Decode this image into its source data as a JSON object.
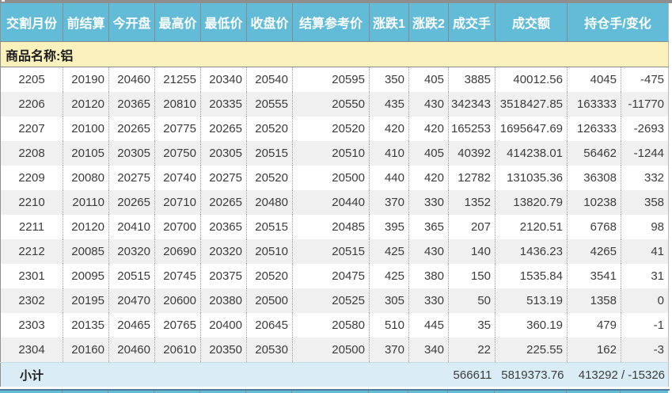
{
  "colors": {
    "header_bg": "#62bbd7",
    "header_text": "#ffffff",
    "product_row_bg": "#faf1bd",
    "subtotal_bg": "#daecf6",
    "row_alt_bg": "#f0f0f0",
    "grid_line": "#8a8a8a"
  },
  "table": {
    "columns": [
      "交割月份",
      "前结算",
      "今开盘",
      "最高价",
      "最低价",
      "收盘价",
      "结算参考价",
      "涨跌1",
      "涨跌2",
      "成交手",
      "成交额",
      "持仓手/变化"
    ],
    "product_label": "商品名称:铝",
    "rows": [
      [
        "2205",
        "20190",
        "20460",
        "21255",
        "20340",
        "20540",
        "20595",
        "350",
        "405",
        "3885",
        "40012.56",
        "4045",
        "-475"
      ],
      [
        "2206",
        "20120",
        "20365",
        "20810",
        "20335",
        "20555",
        "20550",
        "435",
        "430",
        "342343",
        "3518427.85",
        "163333",
        "-11770"
      ],
      [
        "2207",
        "20100",
        "20265",
        "20775",
        "20265",
        "20520",
        "20520",
        "420",
        "420",
        "165253",
        "1695647.69",
        "126333",
        "-2693"
      ],
      [
        "2208",
        "20105",
        "20305",
        "20750",
        "20305",
        "20515",
        "20510",
        "410",
        "405",
        "40392",
        "414238.01",
        "56462",
        "-1244"
      ],
      [
        "2209",
        "20080",
        "20275",
        "20740",
        "20275",
        "20520",
        "20500",
        "440",
        "420",
        "12782",
        "131035.36",
        "36308",
        "332"
      ],
      [
        "2210",
        "20110",
        "20265",
        "20710",
        "20265",
        "20480",
        "20440",
        "370",
        "330",
        "1352",
        "13820.79",
        "10238",
        "358"
      ],
      [
        "2211",
        "20120",
        "20410",
        "20700",
        "20365",
        "20515",
        "20485",
        "395",
        "365",
        "207",
        "2120.51",
        "6768",
        "98"
      ],
      [
        "2212",
        "20085",
        "20320",
        "20690",
        "20320",
        "20510",
        "20515",
        "425",
        "430",
        "140",
        "1436.23",
        "4265",
        "41"
      ],
      [
        "2301",
        "20095",
        "20515",
        "20745",
        "20375",
        "20520",
        "20475",
        "425",
        "380",
        "150",
        "1535.84",
        "3541",
        "31"
      ],
      [
        "2302",
        "20195",
        "20470",
        "20600",
        "20380",
        "20500",
        "20525",
        "305",
        "330",
        "50",
        "513.19",
        "1358",
        "0"
      ],
      [
        "2303",
        "20135",
        "20465",
        "20765",
        "20400",
        "20645",
        "20580",
        "510",
        "445",
        "35",
        "360.19",
        "479",
        "-1"
      ],
      [
        "2304",
        "20160",
        "20460",
        "20610",
        "20350",
        "20530",
        "20500",
        "370",
        "340",
        "22",
        "225.55",
        "162",
        "-3"
      ]
    ],
    "subtotal": {
      "label": "小计",
      "volume": "566611",
      "turnover": "5819373.76",
      "open_interest_change": "413292 / -15326"
    }
  }
}
